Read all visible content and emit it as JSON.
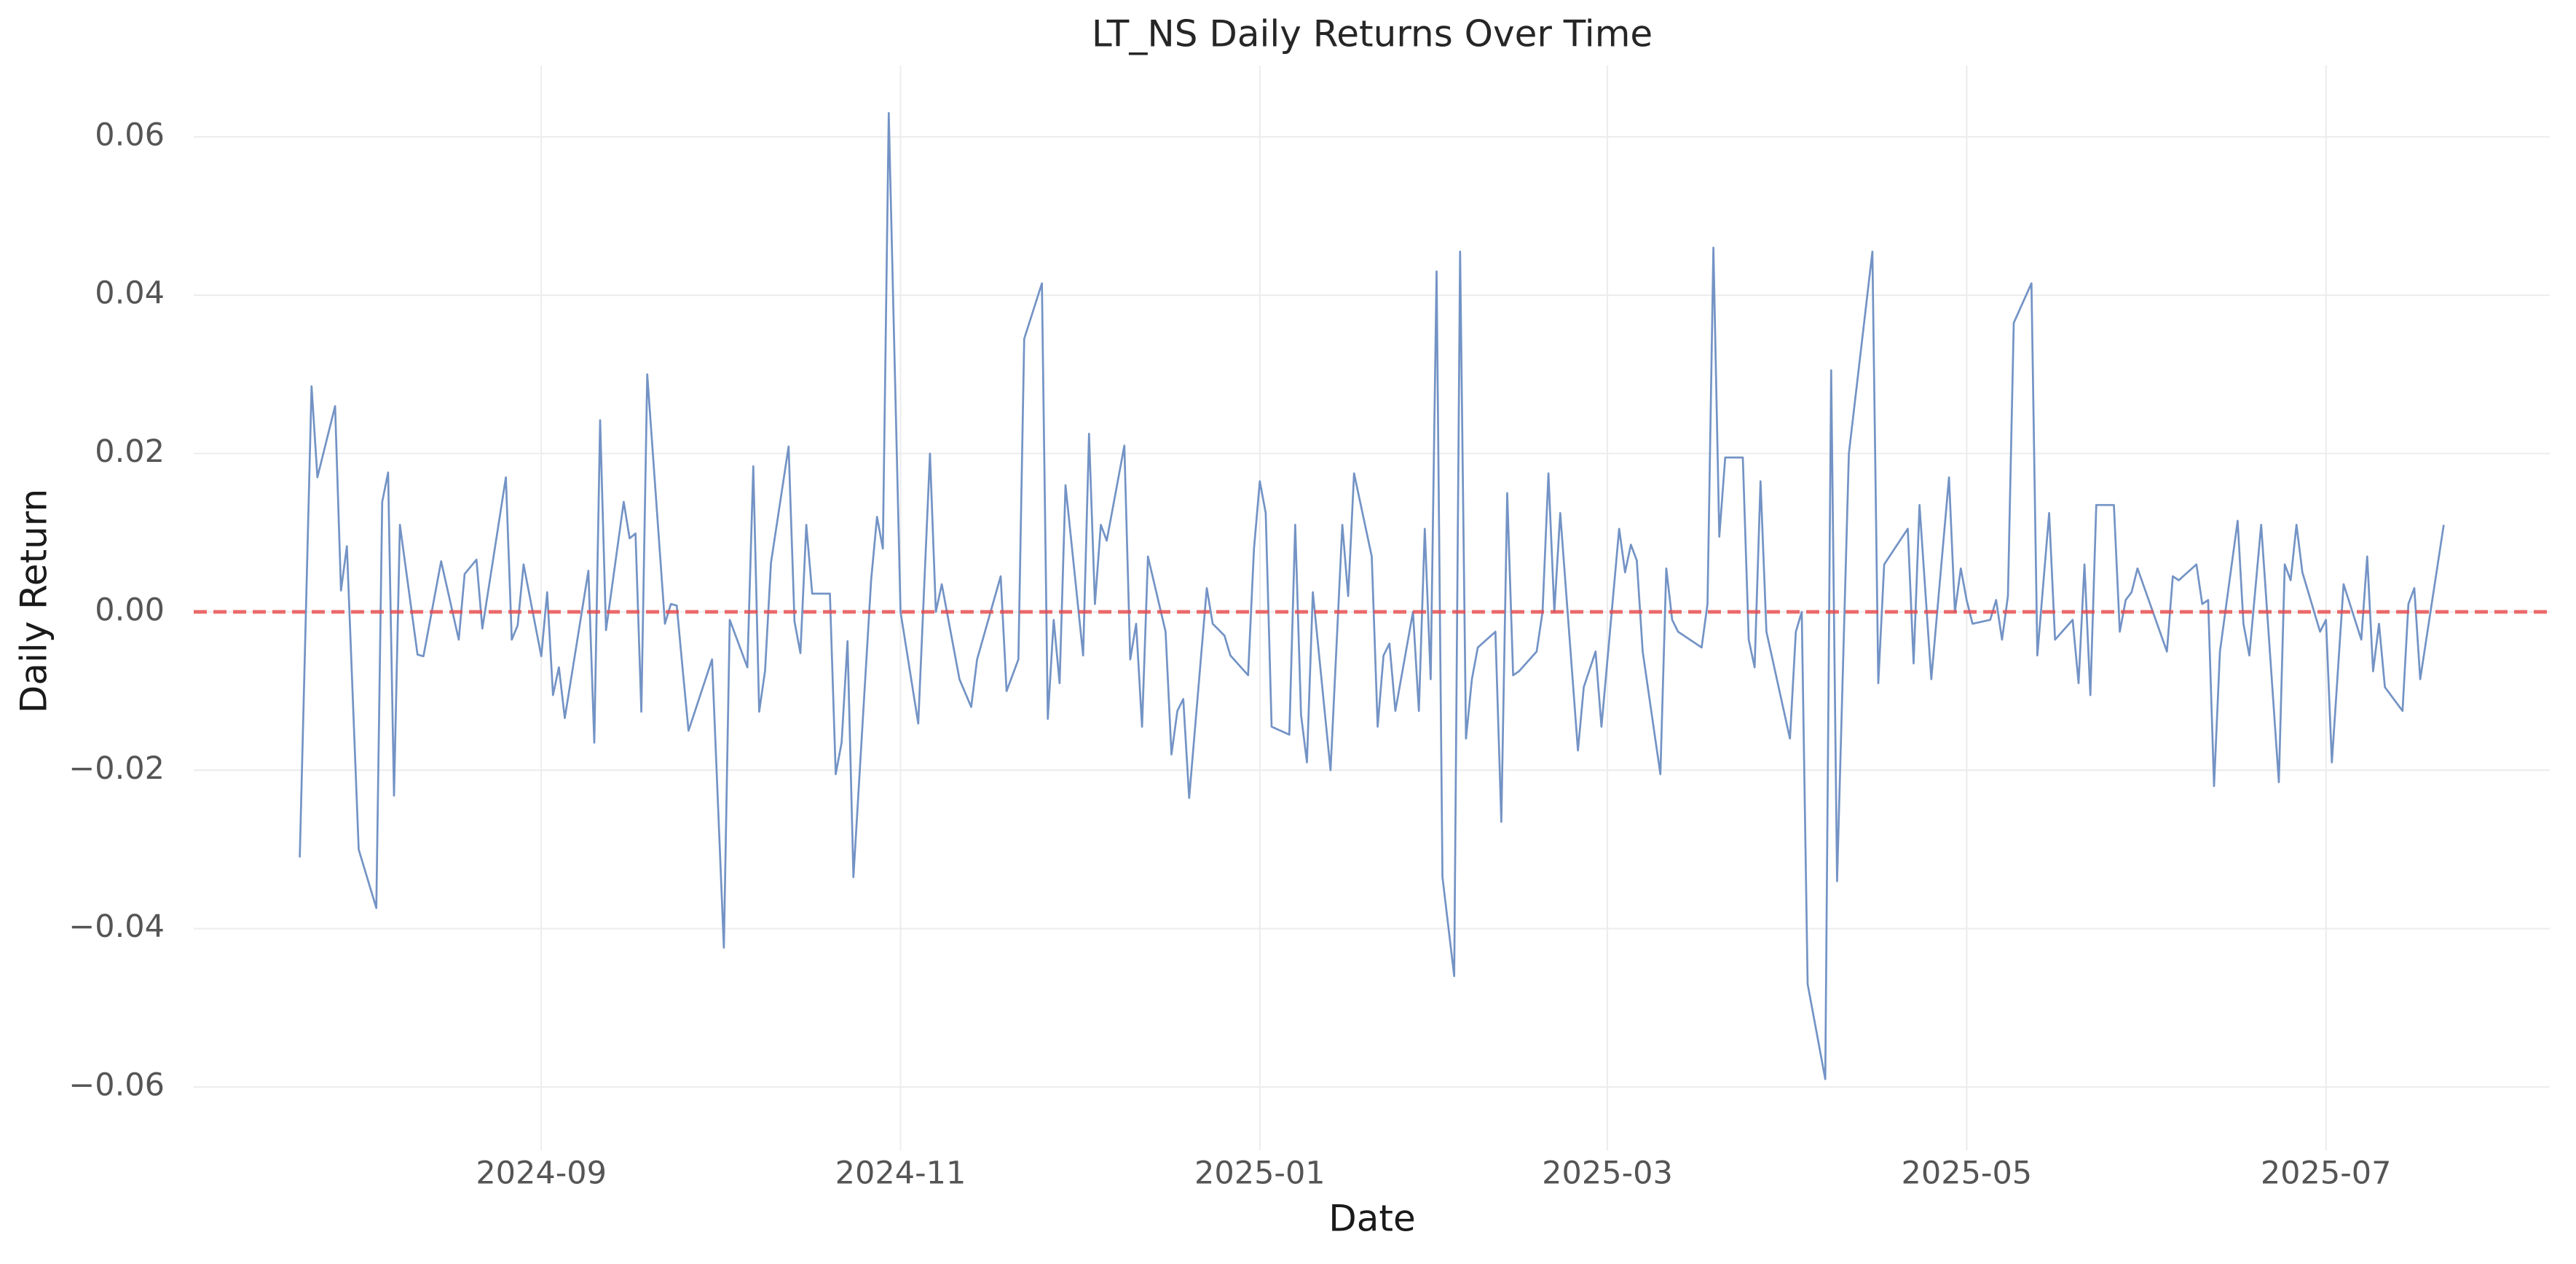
{
  "chart_data": {
    "type": "line",
    "title": "LT_NS Daily Returns Over Time",
    "x_label": "Date",
    "y_label": "Daily Return",
    "color": "#7393c5",
    "grid": true,
    "reference_line": {
      "value": 0,
      "color": "#e8474a",
      "style": "dashed"
    },
    "xlim": [
      "2024-07-04",
      "2025-08-08"
    ],
    "xticks": [
      {
        "value": "2024-09-01",
        "label": "2024-09"
      },
      {
        "value": "2024-11-01",
        "label": "2024-11"
      },
      {
        "value": "2025-01-01",
        "label": "2025-01"
      },
      {
        "value": "2025-03-01",
        "label": "2025-03"
      },
      {
        "value": "2025-05-01",
        "label": "2025-05"
      },
      {
        "value": "2025-07-01",
        "label": "2025-07"
      }
    ],
    "ylim": [
      -0.068,
      0.069
    ],
    "yticks": [
      {
        "value": -0.06,
        "label": "−0.06"
      },
      {
        "value": -0.04,
        "label": "−0.04"
      },
      {
        "value": -0.02,
        "label": "−0.02"
      },
      {
        "value": 0,
        "label": "0.00"
      },
      0.02,
      0.04,
      0.06
    ],
    "x": [
      "2024-07-22",
      "2024-07-24",
      "2024-07-25",
      "2024-07-28",
      "2024-07-29",
      "2024-07-30",
      "2024-08-01",
      "2024-08-04",
      "2024-08-05",
      "2024-08-06",
      "2024-08-07",
      "2024-08-08",
      "2024-08-11",
      "2024-08-12",
      "2024-08-15",
      "2024-08-18",
      "2024-08-19",
      "2024-08-21",
      "2024-08-22",
      "2024-08-26",
      "2024-08-27",
      "2024-08-28",
      "2024-08-29",
      "2024-09-01",
      "2024-09-02",
      "2024-09-03",
      "2024-09-04",
      "2024-09-05",
      "2024-09-09",
      "2024-09-10",
      "2024-09-11",
      "2024-09-12",
      "2024-09-15",
      "2024-09-16",
      "2024-09-17",
      "2024-09-18",
      "2024-09-19",
      "2024-09-22",
      "2024-09-23",
      "2024-09-24",
      "2024-09-25",
      "2024-09-26",
      "2024-09-30",
      "2024-10-02",
      "2024-10-03",
      "2024-10-06",
      "2024-10-07",
      "2024-10-08",
      "2024-10-09",
      "2024-10-10",
      "2024-10-13",
      "2024-10-14",
      "2024-10-15",
      "2024-10-16",
      "2024-10-17",
      "2024-10-20",
      "2024-10-21",
      "2024-10-22",
      "2024-10-23",
      "2024-10-24",
      "2024-10-27",
      "2024-10-28",
      "2024-10-29",
      "2024-10-30",
      "2024-11-01",
      "2024-11-04",
      "2024-11-06",
      "2024-11-07",
      "2024-11-08",
      "2024-11-11",
      "2024-11-13",
      "2024-11-14",
      "2024-11-18",
      "2024-11-19",
      "2024-11-21",
      "2024-11-22",
      "2024-11-25",
      "2024-11-26",
      "2024-11-27",
      "2024-11-28",
      "2024-11-29",
      "2024-12-02",
      "2024-12-03",
      "2024-12-04",
      "2024-12-05",
      "2024-12-06",
      "2024-12-09",
      "2024-12-10",
      "2024-12-11",
      "2024-12-12",
      "2024-12-13",
      "2024-12-16",
      "2024-12-17",
      "2024-12-18",
      "2024-12-19",
      "2024-12-20",
      "2024-12-23",
      "2024-12-24",
      "2024-12-26",
      "2024-12-27",
      "2024-12-30",
      "2024-12-31",
      "2025-01-01",
      "2025-01-02",
      "2025-01-03",
      "2025-01-06",
      "2025-01-07",
      "2025-01-08",
      "2025-01-09",
      "2025-01-10",
      "2025-01-13",
      "2025-01-15",
      "2025-01-16",
      "2025-01-17",
      "2025-01-20",
      "2025-01-21",
      "2025-01-22",
      "2025-01-23",
      "2025-01-24",
      "2025-01-27",
      "2025-01-28",
      "2025-01-29",
      "2025-01-30",
      "2025-01-31",
      "2025-02-01",
      "2025-02-03",
      "2025-02-04",
      "2025-02-05",
      "2025-02-06",
      "2025-02-07",
      "2025-02-10",
      "2025-02-11",
      "2025-02-12",
      "2025-02-13",
      "2025-02-14",
      "2025-02-17",
      "2025-02-18",
      "2025-02-19",
      "2025-02-20",
      "2025-02-21",
      "2025-02-24",
      "2025-02-25",
      "2025-02-27",
      "2025-02-28",
      "2025-03-03",
      "2025-03-04",
      "2025-03-05",
      "2025-03-06",
      "2025-03-07",
      "2025-03-10",
      "2025-03-11",
      "2025-03-12",
      "2025-03-13",
      "2025-03-17",
      "2025-03-18",
      "2025-03-19",
      "2025-03-20",
      "2025-03-21",
      "2025-03-24",
      "2025-03-25",
      "2025-03-26",
      "2025-03-27",
      "2025-03-28",
      "2025-04-01",
      "2025-04-02",
      "2025-04-03",
      "2025-04-04",
      "2025-04-07",
      "2025-04-08",
      "2025-04-09",
      "2025-04-11",
      "2025-04-15",
      "2025-04-16",
      "2025-04-17",
      "2025-04-21",
      "2025-04-22",
      "2025-04-23",
      "2025-04-25",
      "2025-04-28",
      "2025-04-29",
      "2025-04-30",
      "2025-05-01",
      "2025-05-02",
      "2025-05-05",
      "2025-05-06",
      "2025-05-07",
      "2025-05-08",
      "2025-05-09",
      "2025-05-12",
      "2025-05-13",
      "2025-05-15",
      "2025-05-16",
      "2025-05-19",
      "2025-05-20",
      "2025-05-21",
      "2025-05-22",
      "2025-05-23",
      "2025-05-26",
      "2025-05-27",
      "2025-05-28",
      "2025-05-29",
      "2025-05-30",
      "2025-06-04",
      "2025-06-05",
      "2025-06-06",
      "2025-06-09",
      "2025-06-10",
      "2025-06-11",
      "2025-06-12",
      "2025-06-13",
      "2025-06-16",
      "2025-06-17",
      "2025-06-18",
      "2025-06-20",
      "2025-06-23",
      "2025-06-24",
      "2025-06-25",
      "2025-06-26",
      "2025-06-27",
      "2025-06-30",
      "2025-07-01",
      "2025-07-02",
      "2025-07-04",
      "2025-07-07",
      "2025-07-08",
      "2025-07-09",
      "2025-07-10",
      "2025-07-11",
      "2025-07-14",
      "2025-07-15",
      "2025-07-16",
      "2025-07-17",
      "2025-07-21"
    ],
    "values": [
      -0.031,
      0.0285,
      0.017,
      0.026,
      0.0027,
      0.0083,
      -0.03,
      -0.0374,
      0.0139,
      0.0176,
      -0.0232,
      0.011,
      -0.0054,
      -0.0056,
      0.0064,
      -0.0035,
      0.0048,
      0.0066,
      -0.0021,
      0.017,
      -0.0035,
      -0.0017,
      0.006,
      -0.0056,
      0.0025,
      -0.0105,
      -0.007,
      -0.0134,
      0.0052,
      -0.0165,
      0.0242,
      -0.0023,
      0.0139,
      0.0093,
      0.0099,
      -0.0126,
      0.03,
      -0.0015,
      0.001,
      0.0008,
      -0.0072,
      -0.015,
      -0.006,
      -0.0424,
      -0.001,
      -0.007,
      0.0184,
      -0.0126,
      -0.0074,
      0.0062,
      0.0209,
      -0.0012,
      -0.0052,
      0.011,
      0.0023,
      0.0023,
      -0.0205,
      -0.0165,
      -0.0037,
      -0.0335,
      0.004,
      0.012,
      0.008,
      0.063,
      0.0,
      -0.0141,
      0.02,
      0.0,
      0.0035,
      -0.0085,
      -0.012,
      -0.006,
      0.0045,
      -0.01,
      -0.006,
      0.0345,
      0.0415,
      -0.0135,
      -0.001,
      -0.009,
      0.016,
      -0.0055,
      0.0225,
      0.001,
      0.011,
      0.009,
      0.021,
      -0.006,
      -0.0015,
      -0.0145,
      0.007,
      -0.0025,
      -0.018,
      -0.0125,
      -0.011,
      -0.0235,
      0.003,
      -0.0015,
      -0.003,
      -0.0055,
      -0.008,
      0.008,
      0.0165,
      0.0125,
      -0.0145,
      -0.0155,
      0.011,
      -0.013,
      -0.019,
      0.0025,
      -0.02,
      0.011,
      0.002,
      0.0175,
      0.007,
      -0.0145,
      -0.0055,
      -0.004,
      -0.0125,
      0.0,
      -0.0125,
      0.0105,
      -0.0085,
      0.043,
      -0.0335,
      -0.046,
      0.0455,
      -0.016,
      -0.0085,
      -0.0045,
      -0.0025,
      -0.0265,
      0.015,
      -0.008,
      -0.0075,
      -0.005,
      0.0,
      0.0175,
      0.0,
      0.0125,
      -0.0175,
      -0.0095,
      -0.005,
      -0.0145,
      0.0105,
      0.005,
      0.0085,
      0.0065,
      -0.005,
      -0.0205,
      0.0055,
      -0.001,
      -0.0025,
      -0.0045,
      0.001,
      0.046,
      0.0095,
      0.0195,
      0.0195,
      -0.0035,
      -0.007,
      0.0165,
      -0.0025,
      -0.016,
      -0.0025,
      0.0,
      -0.047,
      -0.059,
      0.0305,
      -0.034,
      0.02,
      0.0455,
      -0.009,
      0.006,
      0.0105,
      -0.0065,
      0.0135,
      -0.0085,
      0.017,
      0.0,
      0.0055,
      0.0015,
      -0.0015,
      -0.001,
      0.0015,
      -0.0035,
      0.002,
      0.0365,
      0.0415,
      -0.0055,
      0.0125,
      -0.0035,
      -0.001,
      -0.009,
      0.006,
      -0.0105,
      0.0135,
      0.0135,
      -0.0025,
      0.0015,
      0.0025,
      0.0055,
      -0.005,
      0.0045,
      0.004,
      0.006,
      0.001,
      0.0015,
      -0.022,
      -0.005,
      0.0115,
      -0.0015,
      -0.0055,
      0.011,
      -0.0215,
      0.006,
      0.004,
      0.011,
      0.005,
      -0.0025,
      -0.001,
      -0.019,
      0.0035,
      -0.0035,
      0.007,
      -0.0075,
      -0.0015,
      -0.0095,
      -0.0125,
      0.001,
      0.003,
      -0.0085,
      0.011
    ]
  }
}
